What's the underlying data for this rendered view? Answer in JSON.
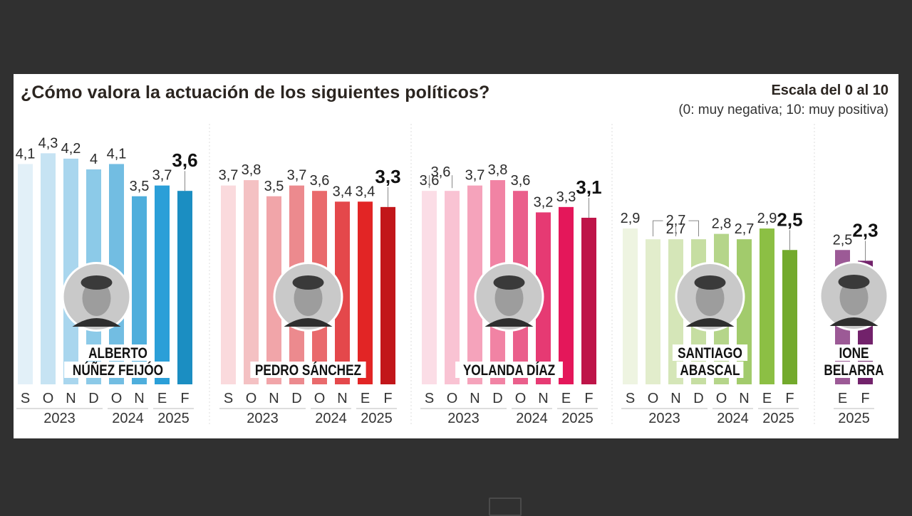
{
  "header": {
    "title": "¿Cómo valora la actuación de los siguientes políticos?",
    "scale_title": "Escala del 0 al 10",
    "scale_subtitle": "(0: muy negativa; 10: muy positiva)"
  },
  "chart_data": {
    "type": "bar",
    "title": "¿Cómo valora la actuación de los siguientes políticos?",
    "subtitle": "Escala del 0 al 10 (0: muy negativa; 10: muy positiva)",
    "xlabel": "",
    "ylabel": "",
    "ylim": [
      0,
      10
    ],
    "grid": false,
    "legend": "none",
    "groups": [
      {
        "name": "ALBERTO NÚÑEZ FEIJÓO",
        "name_lines": [
          "ALBERTO",
          "NÚÑEZ FEIJÓO"
        ],
        "photo": "portrait-feijoo",
        "categories": [
          "S",
          "O",
          "N",
          "D",
          "O",
          "N",
          "E",
          "F"
        ],
        "values": [
          4.1,
          4.3,
          4.2,
          4.0,
          4.1,
          3.5,
          3.7,
          3.6
        ],
        "labels": [
          "4,1",
          "4,3",
          "4,2",
          "4",
          "4,1",
          "3,5",
          "3,7",
          "3,6"
        ],
        "years": [
          {
            "label": "2023",
            "span": [
              0,
              3
            ]
          },
          {
            "label": "2024",
            "span": [
              4,
              5
            ]
          },
          {
            "label": "2025",
            "span": [
              6,
              7
            ]
          }
        ],
        "brackets": [],
        "colors": [
          "#e2f0f8",
          "#c6e3f3",
          "#a9d6ee",
          "#8ccae8",
          "#72bde2",
          "#4eaedc",
          "#2b9fd8",
          "#1b8ec2"
        ]
      },
      {
        "name": "PEDRO SÁNCHEZ",
        "name_lines": [
          "PEDRO SÁNCHEZ"
        ],
        "photo": "portrait-sanchez",
        "categories": [
          "S",
          "O",
          "N",
          "D",
          "O",
          "N",
          "E",
          "F"
        ],
        "values": [
          3.7,
          3.8,
          3.5,
          3.7,
          3.6,
          3.4,
          3.4,
          3.3
        ],
        "labels": [
          "3,7",
          "3,8",
          "3,5",
          "3,7",
          "3,6",
          "3,4",
          "3,4",
          "3,3"
        ],
        "years": [
          {
            "label": "2023",
            "span": [
              0,
              3
            ]
          },
          {
            "label": "2024",
            "span": [
              4,
              5
            ]
          },
          {
            "label": "2025",
            "span": [
              6,
              7
            ]
          }
        ],
        "brackets": [],
        "colors": [
          "#fadadd",
          "#f4c1c3",
          "#f1a5a9",
          "#ec8a8e",
          "#e96a6c",
          "#e4484b",
          "#e22525",
          "#c2161a"
        ]
      },
      {
        "name": "YOLANDA DÍAZ",
        "name_lines": [
          "YOLANDA DÍAZ"
        ],
        "photo": "portrait-diaz",
        "categories": [
          "S",
          "O",
          "N",
          "D",
          "O",
          "N",
          "E",
          "F"
        ],
        "values": [
          3.6,
          3.6,
          3.7,
          3.8,
          3.6,
          3.2,
          3.3,
          3.1
        ],
        "labels": [
          "3,6",
          "",
          "3,7",
          "3,8",
          "3,6",
          "3,2",
          "3,3",
          "3,1"
        ],
        "years": [
          {
            "label": "2023",
            "span": [
              0,
              3
            ]
          },
          {
            "label": "2024",
            "span": [
              4,
              5
            ]
          },
          {
            "label": "2025",
            "span": [
              6,
              7
            ]
          }
        ],
        "brackets": [
          {
            "from": 0,
            "to": 1,
            "label": "3,6"
          }
        ],
        "colors": [
          "#fbdde6",
          "#f9c3d3",
          "#f5a3bb",
          "#f183a4",
          "#ea5f8b",
          "#e63a73",
          "#e4175a",
          "#be1448"
        ]
      },
      {
        "name": "SANTIAGO ABASCAL",
        "name_lines": [
          "SANTIAGO",
          "ABASCAL"
        ],
        "photo": "portrait-abascal",
        "categories": [
          "S",
          "O",
          "N",
          "D",
          "O",
          "N",
          "E",
          "F"
        ],
        "values": [
          2.9,
          2.7,
          2.7,
          2.7,
          2.8,
          2.7,
          2.9,
          2.5
        ],
        "labels": [
          "2,9",
          "",
          "2,7",
          "",
          "2,8",
          "2,7",
          "2,9",
          "2,5"
        ],
        "years": [
          {
            "label": "2023",
            "span": [
              0,
              3
            ]
          },
          {
            "label": "2024",
            "span": [
              4,
              5
            ]
          },
          {
            "label": "2025",
            "span": [
              6,
              7
            ]
          }
        ],
        "brackets": [
          {
            "from": 1,
            "to": 3,
            "label": "2,7"
          }
        ],
        "colors": [
          "#eef4e1",
          "#e2edcc",
          "#d5e6b8",
          "#c6dea2",
          "#b5d58a",
          "#a2cb6c",
          "#8cbf44",
          "#73aa2c"
        ]
      },
      {
        "name": "IONE BELARRA",
        "name_lines": [
          "IONE",
          "BELARRA"
        ],
        "photo": "portrait-belarra",
        "categories": [
          "E",
          "F"
        ],
        "values": [
          2.5,
          2.3
        ],
        "labels": [
          "2,5",
          "2,3"
        ],
        "years": [
          {
            "label": "2025",
            "span": [
              0,
              1
            ]
          }
        ],
        "brackets": [],
        "colors": [
          "#9c5a96",
          "#72226b"
        ]
      }
    ]
  }
}
